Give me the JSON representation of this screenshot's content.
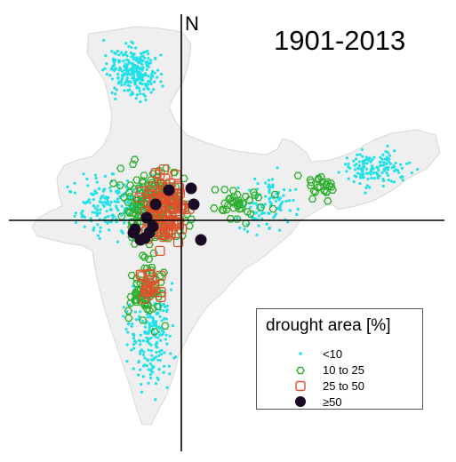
{
  "title": "1901-2013",
  "north_label": "N",
  "legend": {
    "title": "drought area [%]",
    "items": [
      {
        "label": "<10",
        "symbol": "small-dot",
        "color": "#22e0e8"
      },
      {
        "label": "10 to 25",
        "symbol": "hexagon-outline",
        "color": "#2fae2f"
      },
      {
        "label": "25 to 50",
        "symbol": "square-outline",
        "color": "#e0502a"
      },
      {
        "label": "≥50",
        "symbol": "filled-circle",
        "color": "#1a0a24"
      }
    ]
  },
  "colors": {
    "land": "#efefef",
    "land_outline": "#d8d8d8",
    "lt10": "#22e0e8",
    "c10to25": "#2fae2f",
    "c25to50": "#e0502a",
    "ge50": "#1a0a24",
    "axes": "#000000"
  }
}
